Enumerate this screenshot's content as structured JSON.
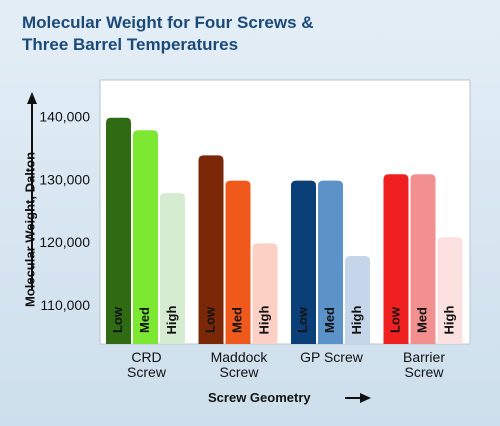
{
  "chart_data": {
    "type": "bar",
    "title": "Molecular Weight for Four Screws & Three Barrel Temperatures",
    "y_label": "Molecular Weight, Dalton",
    "x_label": "Screw Geometry",
    "categories": [
      "CRD Screw",
      "Maddock Screw",
      "GP Screw",
      "Barrier Screw"
    ],
    "series": [
      {
        "name": "Low",
        "colors": [
          "#2e6b12",
          "#7a2808",
          "#0b3f78",
          "#f02020"
        ],
        "values": [
          140000,
          134000,
          130000,
          131000
        ]
      },
      {
        "name": "Med",
        "colors": [
          "#7de832",
          "#ef5a1c",
          "#5b92c8",
          "#f29090"
        ],
        "values": [
          138000,
          130000,
          130000,
          131000
        ]
      },
      {
        "name": "High",
        "colors": [
          "#d6ecd0",
          "#fcd0c4",
          "#c5d6ea",
          "#fbe0e0"
        ],
        "values": [
          128000,
          120000,
          118000,
          121000
        ]
      }
    ],
    "ylim": [
      104000,
      146000
    ],
    "yticks": [
      {
        "value": 110000,
        "label": "110,000"
      },
      {
        "value": 120000,
        "label": "120,000"
      },
      {
        "value": 130000,
        "label": "130,000"
      },
      {
        "value": 140000,
        "label": "140,000"
      }
    ],
    "grid": false
  }
}
